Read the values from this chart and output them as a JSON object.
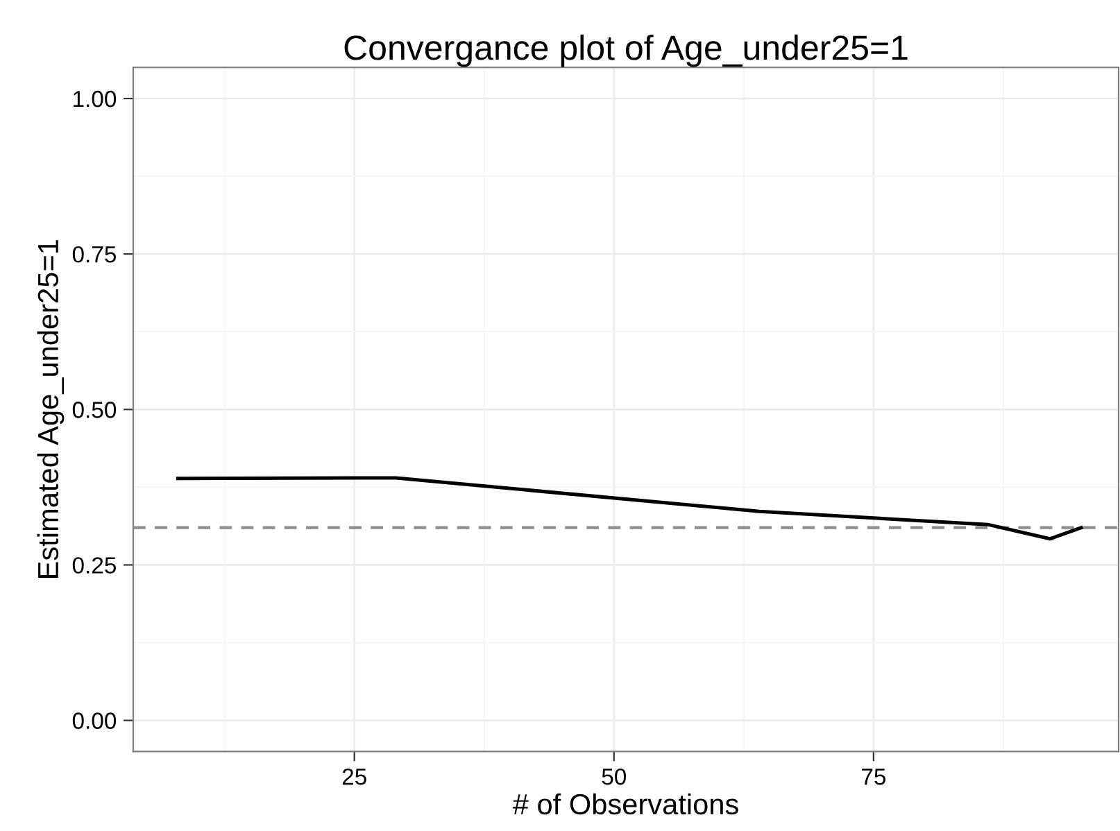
{
  "chart_data": {
    "type": "line",
    "title": "Convergance plot of Age_under25=1",
    "xlabel": "# of Observations",
    "ylabel": "Estimated Age_under25=1",
    "series": [
      {
        "color": "#000000",
        "x": [
          8,
          29,
          64,
          86,
          92,
          95
        ],
        "values": [
          0.389,
          0.39,
          0.336,
          0.315,
          0.292,
          0.31
        ]
      }
    ],
    "xlim": [
      3.7,
      98.6
    ],
    "ylim": [
      -0.05,
      1.05
    ],
    "xticks": [
      25,
      50,
      75
    ],
    "yticks": [
      {
        "value": 0,
        "label": "0.00"
      },
      {
        "value": 0.25,
        "label": "0.25"
      },
      {
        "value": 0.5,
        "label": "0.50"
      },
      {
        "value": 0.75,
        "label": "0.75"
      },
      {
        "value": 1,
        "label": "1.00"
      }
    ],
    "ref_lines": [
      {
        "axis": "y",
        "value": 0.31,
        "color": "#8c8c8c",
        "line_style": "dashed"
      }
    ],
    "grid": true,
    "line_style": "solid",
    "marker": "none"
  }
}
